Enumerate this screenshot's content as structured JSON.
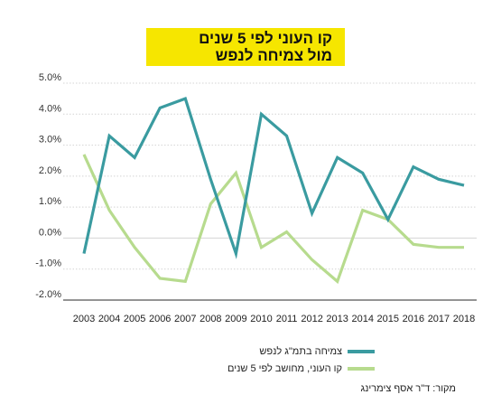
{
  "title": {
    "line1": "קו העוני לפי 5 שנים",
    "line2": "מול צמיחה לנפש"
  },
  "colors": {
    "title_background": "#f6e600",
    "grid": "#d4d4d4",
    "axis": "#555555"
  },
  "legend": {
    "placement": "bottom-right",
    "items": [
      {
        "label": "צמיחה בתמ\"ג לנפש",
        "color": "#3a9ba0"
      },
      {
        "label": "קו העוני, מחושב לפי 5 שנים",
        "color": "#b7db8e"
      }
    ]
  },
  "source_note": "מקור: ד\"ר אסף צימרינג",
  "chart_data": {
    "type": "line",
    "title": "קו העוני לפי 5 שנים מול צמיחה לנפש",
    "xlabel": "",
    "ylabel": "",
    "ylim": [
      -2.0,
      5.0
    ],
    "grid": true,
    "y_ticks": [
      "5.0%",
      "4.0%",
      "3.0%",
      "2.0%",
      "1.0%",
      "0.0%",
      "-1.0%",
      "-2.0%"
    ],
    "y_tick_values": [
      5,
      4,
      3,
      2,
      1,
      0,
      -1,
      -2
    ],
    "categories": [
      "2003",
      "2004",
      "2005",
      "2006",
      "2007",
      "2008",
      "2009",
      "2010",
      "2011",
      "2012",
      "2013",
      "2014",
      "2015",
      "2016",
      "2017",
      "2018"
    ],
    "series": [
      {
        "name": "צמיחה בתמ\"ג לנפש",
        "color": "#3a9ba0",
        "values": [
          -0.5,
          3.3,
          2.6,
          4.2,
          4.5,
          1.9,
          -0.5,
          4.0,
          3.3,
          0.8,
          2.6,
          2.1,
          0.6,
          2.3,
          1.9,
          1.7
        ]
      },
      {
        "name": "קו העוני, מחושב לפי 5 שנים",
        "color": "#b7db8e",
        "values": [
          2.7,
          0.9,
          -0.3,
          -1.3,
          -1.4,
          1.1,
          2.1,
          -0.3,
          0.2,
          -0.7,
          -1.4,
          0.9,
          0.6,
          -0.2,
          -0.3,
          -0.3
        ]
      }
    ]
  }
}
